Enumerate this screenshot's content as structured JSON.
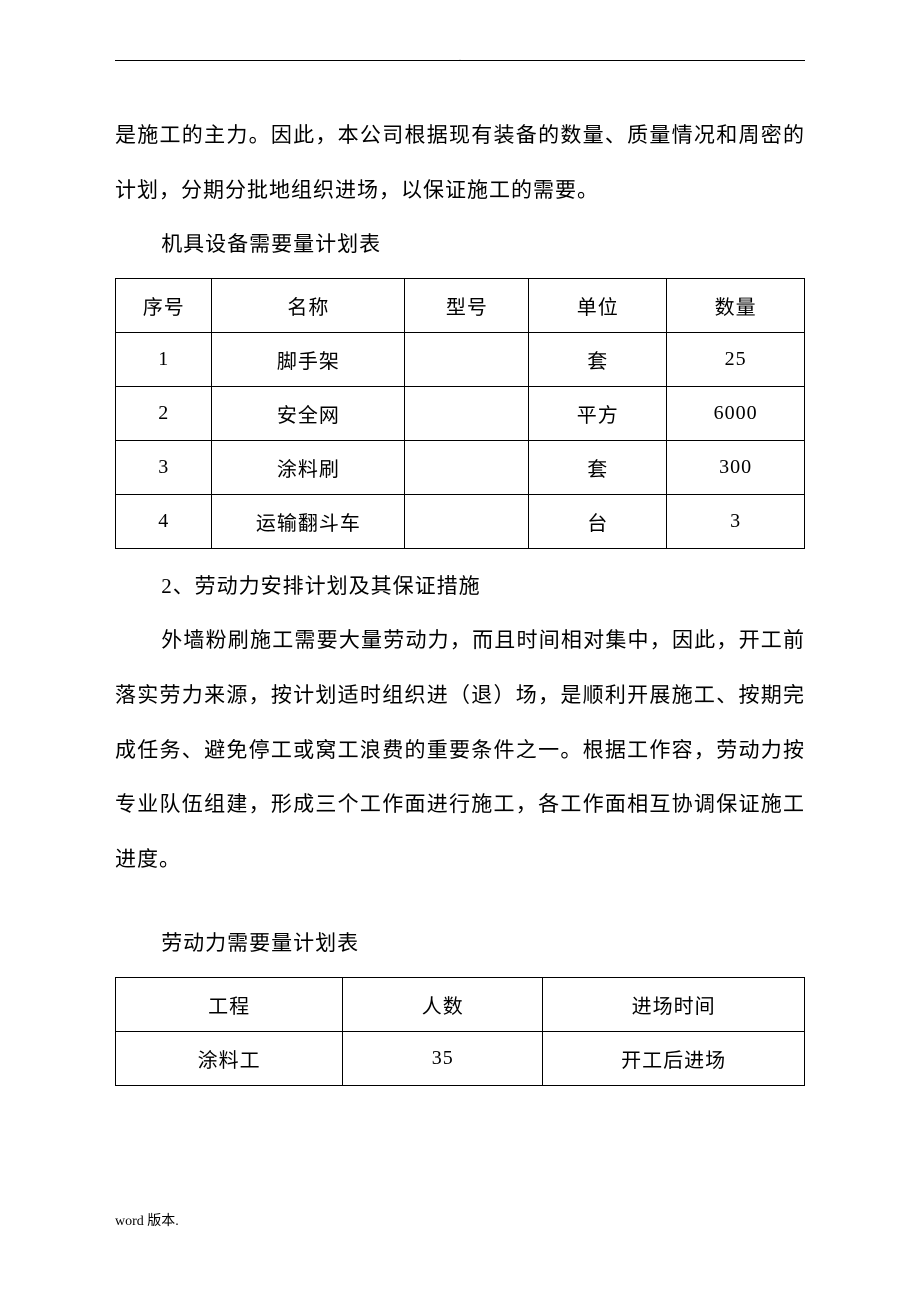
{
  "intro_paragraph": "是施工的主力。因此，本公司根据现有装备的数量、质量情况和周密的计划，分期分批地组织进场，以保证施工的需要。",
  "table1": {
    "caption": "机具设备需要量计划表",
    "headers": [
      "序号",
      "名称",
      "型号",
      "单位",
      "数量"
    ],
    "rows": [
      [
        "1",
        "脚手架",
        "",
        "套",
        "25"
      ],
      [
        "2",
        "安全网",
        "",
        "平方",
        "6000"
      ],
      [
        "3",
        "涂料刷",
        "",
        "套",
        "300"
      ],
      [
        "4",
        "运输翻斗车",
        "",
        "台",
        "3"
      ]
    ]
  },
  "section2_heading": "2、劳动力安排计划及其保证措施",
  "section2_paragraph": "外墙粉刷施工需要大量劳动力，而且时间相对集中，因此，开工前落实劳力来源，按计划适时组织进（退）场，是顺利开展施工、按期完成任务、避免停工或窝工浪费的重要条件之一。根据工作容，劳动力按专业队伍组建，形成三个工作面进行施工，各工作面相互协调保证施工进度。",
  "table2": {
    "caption": "劳动力需要量计划表",
    "headers": [
      "工程",
      "人数",
      "进场时间"
    ],
    "rows": [
      [
        "涂料工",
        "35",
        "开工后进场"
      ]
    ]
  },
  "footer_text": "word 版本."
}
